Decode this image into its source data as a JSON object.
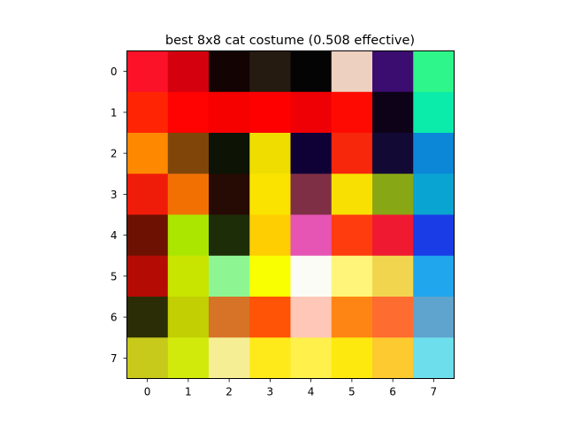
{
  "chart_data": {
    "type": "heatmap",
    "title": "best 8x8 cat costume (0.508 effective)",
    "xlabel": "",
    "ylabel": "",
    "x_ticks": [
      "0",
      "1",
      "2",
      "3",
      "4",
      "5",
      "6",
      "7"
    ],
    "y_ticks": [
      "0",
      "1",
      "2",
      "3",
      "4",
      "5",
      "6",
      "7"
    ],
    "xlim": [
      -0.5,
      7.5
    ],
    "ylim": [
      7.5,
      -0.5
    ],
    "grid": false,
    "legend": "none",
    "cells": [
      [
        "#fb1228",
        "#d4000e",
        "#130403",
        "#261b10",
        "#040404",
        "#eed0c0",
        "#3b0d70",
        "#2ff68a"
      ],
      [
        "#ff2404",
        "#ff0202",
        "#f60000",
        "#ff0000",
        "#ef0004",
        "#ff0a02",
        "#0e0218",
        "#0bebaa"
      ],
      [
        "#fe8800",
        "#804509",
        "#0d1406",
        "#efdd00",
        "#0f0036",
        "#f6270b",
        "#120935",
        "#0c87d8"
      ],
      [
        "#f01c0a",
        "#f27002",
        "#260a04",
        "#fbe300",
        "#7e2f45",
        "#f8e002",
        "#88a714",
        "#0aa4d3"
      ],
      [
        "#6d1203",
        "#abe600",
        "#1d2d07",
        "#fece03",
        "#e654b4",
        "#ff3c0e",
        "#f01932",
        "#1a3ce6"
      ],
      [
        "#b40c05",
        "#c8e500",
        "#8df692",
        "#f9ff00",
        "#fafcf5",
        "#fff57a",
        "#f2d54f",
        "#1fa6ec"
      ],
      [
        "#2b2d07",
        "#c2cf02",
        "#d77327",
        "#ff5306",
        "#ffc7b7",
        "#fe8513",
        "#fe6c30",
        "#5fa4cf"
      ],
      [
        "#c7c91b",
        "#d2ea0b",
        "#f6ee95",
        "#feea1a",
        "#fff04c",
        "#fde90e",
        "#fdca2f",
        "#6ddeeb"
      ]
    ]
  }
}
